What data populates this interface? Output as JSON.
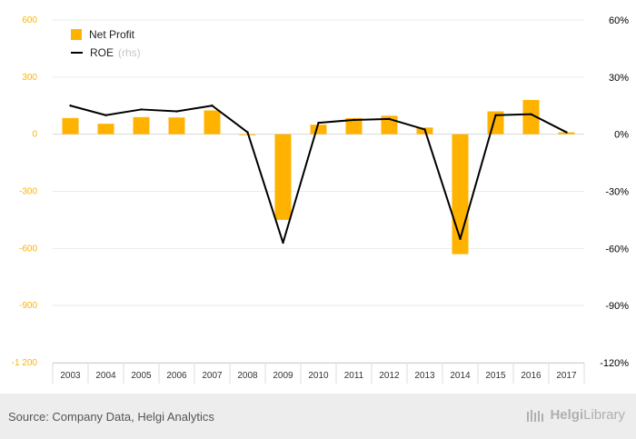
{
  "chart_data": {
    "type": "bar",
    "title": "",
    "categories": [
      "2003",
      "2004",
      "2005",
      "2006",
      "2007",
      "2008",
      "2009",
      "2010",
      "2011",
      "2012",
      "2013",
      "2014",
      "2015",
      "2016",
      "2017"
    ],
    "series": [
      {
        "name": "Net Profit",
        "type": "bar",
        "axis": "left",
        "color": "#FFB300",
        "values": [
          85,
          55,
          90,
          88,
          125,
          -5,
          -450,
          50,
          85,
          97,
          35,
          -630,
          120,
          180,
          10
        ]
      },
      {
        "name": "ROE",
        "type": "line",
        "axis": "right",
        "color": "#000000",
        "values": [
          15,
          10,
          13,
          12,
          15,
          1,
          -57,
          6,
          7.5,
          8,
          2.5,
          -55,
          10,
          10.5,
          1
        ]
      }
    ],
    "y_left": {
      "ylim": [
        -1200,
        600
      ],
      "ticks": [
        "600",
        "300",
        "0",
        "-300",
        "-600",
        "-900",
        "-1 200"
      ]
    },
    "y_right": {
      "ylim": [
        -120,
        60
      ],
      "ticks": [
        "60%",
        "30%",
        "0%",
        "-30%",
        "-60%",
        "-90%",
        "-120%"
      ]
    },
    "grid": true,
    "legend": {
      "position": "top-left",
      "bar_label": "Net Profit",
      "line_label": "ROE",
      "line_note": "(rhs)"
    }
  },
  "footer": {
    "source": "Source: Company Data, Helgi Analytics",
    "logo_text_a": "Helgi",
    "logo_text_b": "Library"
  }
}
